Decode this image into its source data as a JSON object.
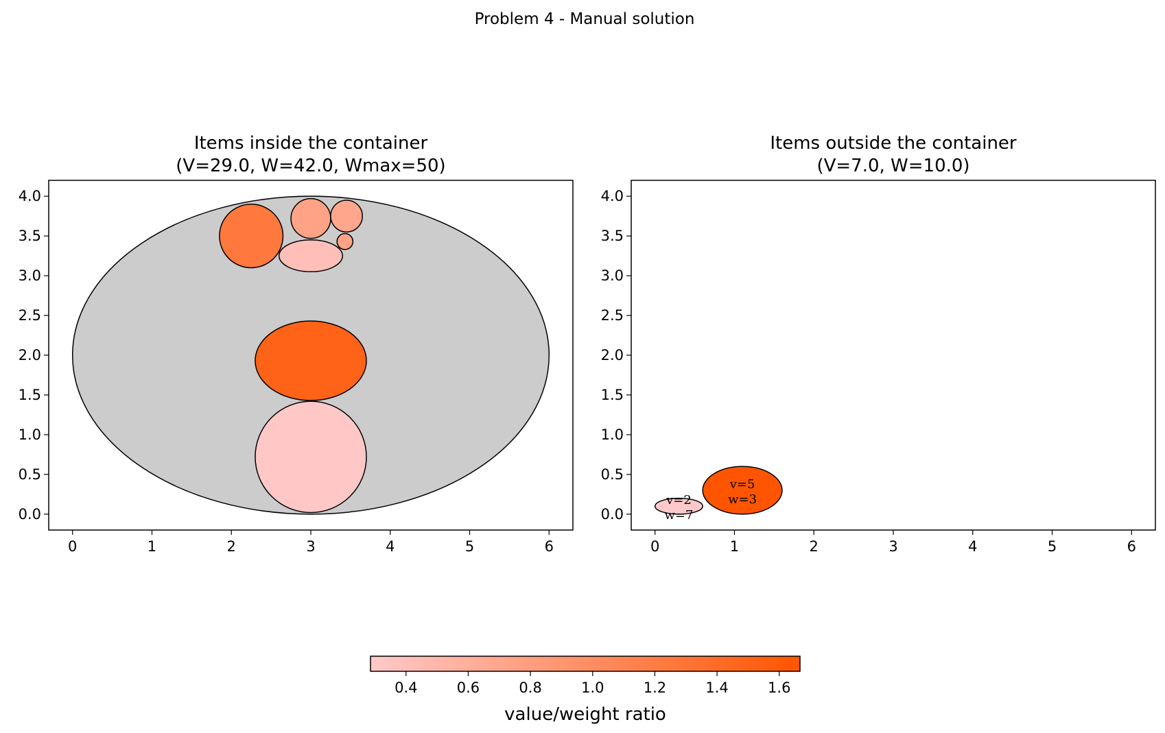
{
  "figure_title": "Problem 4 - Manual solution",
  "colorbar": {
    "label": "value/weight ratio",
    "min": 0.2857,
    "max": 1.6667,
    "ticks": [
      "0.4",
      "0.6",
      "0.8",
      "1.0",
      "1.2",
      "1.4",
      "1.6"
    ],
    "tick_values": [
      0.4,
      0.6,
      0.8,
      1.0,
      1.2,
      1.4,
      1.6
    ],
    "color_low": "#ffc9c9",
    "color_high": "#ff5500"
  },
  "chart_data": [
    {
      "type": "scatter",
      "title_line1": "Items inside the container",
      "title_line2": "(V=29.0, W=42.0, Wmax=50)",
      "xlim": [
        -0.3,
        6.3
      ],
      "ylim": [
        -0.2,
        4.2
      ],
      "xticks": [
        "0",
        "1",
        "2",
        "3",
        "4",
        "5",
        "6"
      ],
      "xtick_values": [
        0,
        1,
        2,
        3,
        4,
        5,
        6
      ],
      "yticks": [
        "0.0",
        "0.5",
        "1.0",
        "1.5",
        "2.0",
        "2.5",
        "3.0",
        "3.5",
        "4.0"
      ],
      "ytick_values": [
        0.0,
        0.5,
        1.0,
        1.5,
        2.0,
        2.5,
        3.0,
        3.5,
        4.0
      ],
      "container": {
        "cx": 3.0,
        "cy": 2.0,
        "rx": 3.0,
        "ry": 2.0,
        "color": "#cccccc"
      },
      "items": [
        {
          "cx": 3.0,
          "cy": 0.72,
          "rx": 0.7,
          "ry": 0.7,
          "ratio": 0.3
        },
        {
          "cx": 3.0,
          "cy": 1.93,
          "rx": 0.7,
          "ry": 0.5,
          "ratio": 1.5
        },
        {
          "cx": 2.25,
          "cy": 3.5,
          "rx": 0.4,
          "ry": 0.4,
          "ratio": 1.25
        },
        {
          "cx": 3.0,
          "cy": 3.25,
          "rx": 0.4,
          "ry": 0.2,
          "ratio": 0.4
        },
        {
          "cx": 3.0,
          "cy": 3.72,
          "rx": 0.25,
          "ry": 0.25,
          "ratio": 0.75
        },
        {
          "cx": 3.45,
          "cy": 3.75,
          "rx": 0.2,
          "ry": 0.2,
          "ratio": 0.7
        },
        {
          "cx": 3.43,
          "cy": 3.43,
          "rx": 0.1,
          "ry": 0.1,
          "ratio": 0.75
        }
      ]
    },
    {
      "type": "scatter",
      "title_line1": "Items outside the container",
      "title_line2": "(V=7.0, W=10.0)",
      "xlim": [
        -0.3,
        6.3
      ],
      "ylim": [
        -0.2,
        4.2
      ],
      "xticks": [
        "0",
        "1",
        "2",
        "3",
        "4",
        "5",
        "6"
      ],
      "xtick_values": [
        0,
        1,
        2,
        3,
        4,
        5,
        6
      ],
      "yticks": [
        "0.0",
        "0.5",
        "1.0",
        "1.5",
        "2.0",
        "2.5",
        "3.0",
        "3.5",
        "4.0"
      ],
      "ytick_values": [
        0.0,
        0.5,
        1.0,
        1.5,
        2.0,
        2.5,
        3.0,
        3.5,
        4.0
      ],
      "items": [
        {
          "cx": 0.3,
          "cy": 0.1,
          "rx": 0.3,
          "ry": 0.1,
          "ratio": 0.2857,
          "label_v": "v=2",
          "label_w": "w=7"
        },
        {
          "cx": 1.1,
          "cy": 0.3,
          "rx": 0.5,
          "ry": 0.3,
          "ratio": 1.6667,
          "label_v": "v=5",
          "label_w": "w=3"
        }
      ]
    }
  ]
}
